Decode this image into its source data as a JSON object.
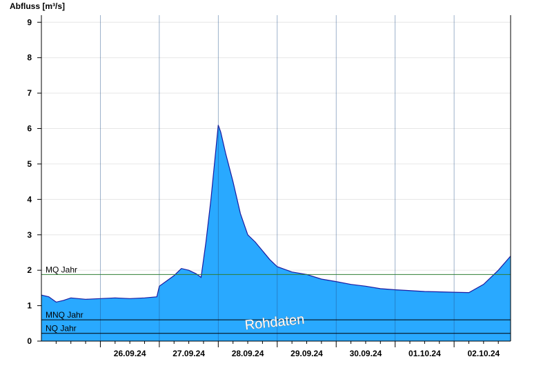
{
  "chart_data": {
    "type": "area",
    "ylabel": "Abfluss [m³/s]",
    "ylim": [
      0,
      9.2
    ],
    "yticks": [
      "0",
      "1",
      "2",
      "3",
      "4",
      "5",
      "6",
      "7",
      "8",
      "9"
    ],
    "xlim": [
      "25.09.24 00:00",
      "02.10.24 23:00"
    ],
    "xtick_labels": [
      "26.09.24",
      "27.09.24",
      "28.09.24",
      "29.09.24",
      "30.09.24",
      "01.10.24",
      "02.10.24"
    ],
    "grid": true,
    "series": [
      {
        "x": [
          "25.09.24 00:00",
          "25.09.24 03:00",
          "25.09.24 06:00",
          "25.09.24 09:00",
          "25.09.24 12:00",
          "25.09.24 18:00",
          "26.09.24 00:00",
          "26.09.24 06:00",
          "26.09.24 12:00",
          "26.09.24 18:00",
          "26.09.24 23:00",
          "27.09.24 00:00",
          "27.09.24 03:00",
          "27.09.24 06:00",
          "27.09.24 09:00",
          "27.09.24 12:00",
          "27.09.24 15:00",
          "27.09.24 17:00",
          "27.09.24 19:00",
          "27.09.24 21:00",
          "27.09.24 23:00",
          "28.09.24 00:00",
          "28.09.24 01:00",
          "28.09.24 03:00",
          "28.09.24 06:00",
          "28.09.24 09:00",
          "28.09.24 12:00",
          "28.09.24 15:00",
          "28.09.24 18:00",
          "28.09.24 21:00",
          "29.09.24 00:00",
          "29.09.24 06:00",
          "29.09.24 12:00",
          "29.09.24 18:00",
          "30.09.24 00:00",
          "30.09.24 06:00",
          "30.09.24 12:00",
          "30.09.24 18:00",
          "01.10.24 00:00",
          "01.10.24 12:00",
          "02.10.24 00:00",
          "02.10.24 06:00",
          "02.10.24 12:00",
          "02.10.24 18:00",
          "02.10.24 23:00"
        ],
        "values": [
          1.3,
          1.25,
          1.1,
          1.15,
          1.22,
          1.18,
          1.2,
          1.22,
          1.2,
          1.22,
          1.25,
          1.55,
          1.7,
          1.85,
          2.05,
          2.0,
          1.9,
          1.8,
          2.8,
          4.0,
          5.4,
          6.1,
          5.9,
          5.3,
          4.5,
          3.6,
          3.0,
          2.8,
          2.55,
          2.3,
          2.1,
          1.95,
          1.88,
          1.75,
          1.68,
          1.6,
          1.55,
          1.48,
          1.45,
          1.4,
          1.38,
          1.37,
          1.6,
          2.0,
          2.4
        ],
        "color": "#29a9ff",
        "line_color": "#1a1aa0"
      }
    ],
    "reference_lines": [
      {
        "label": "MQ Jahr",
        "value": 1.88,
        "color": "#2e7d32"
      },
      {
        "label": "MNQ Jahr",
        "value": 0.6,
        "color": "#000000"
      },
      {
        "label": "NQ Jahr",
        "value": 0.22,
        "color": "#000000"
      }
    ],
    "annotations": [
      "Rohdaten"
    ]
  }
}
